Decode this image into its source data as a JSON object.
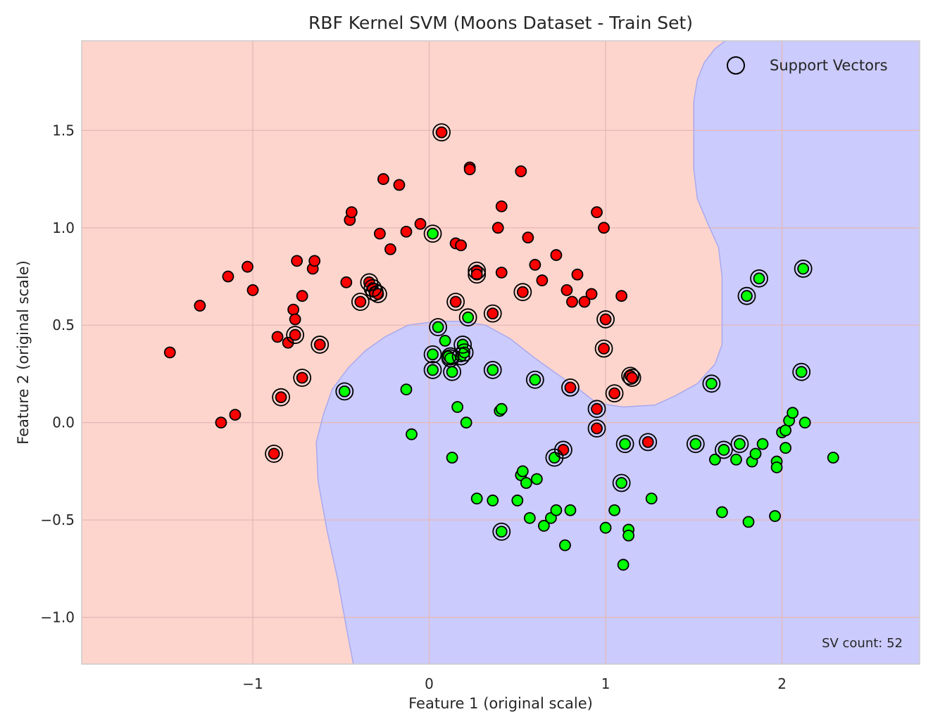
{
  "chart_data": {
    "type": "scatter",
    "title": "RBF Kernel SVM (Moons Dataset - Train Set)",
    "xlabel": "Feature 1 (original scale)",
    "ylabel": "Feature 2 (original scale)",
    "xlim": [
      -1.97,
      2.78
    ],
    "ylim": [
      -1.24,
      1.96
    ],
    "xticks": [
      -1,
      0,
      1,
      2
    ],
    "yticks": [
      -1.0,
      -0.5,
      0.0,
      0.5,
      1.0,
      1.5
    ],
    "xtick_labels": [
      "−1",
      "0",
      "1",
      "2"
    ],
    "ytick_labels": [
      "−1.0",
      "−0.5",
      "0.0",
      "0.5",
      "1.0",
      "1.5"
    ],
    "grid": true,
    "legend_position": "top-right",
    "legend": [
      {
        "label": "Support Vectors",
        "marker": "open-circle"
      }
    ],
    "annotation": "SV count: 52",
    "colors": {
      "class0_region": "#fdd5cd",
      "class1_region": "#cbcbfd",
      "class0_point": "#ff0000",
      "class1_point": "#00ff00",
      "point_edge": "#000000",
      "grid": "#e6b8b8"
    },
    "decision_boundary": [
      [
        1.68,
        1.96
      ],
      [
        1.62,
        1.92
      ],
      [
        1.56,
        1.85
      ],
      [
        1.52,
        1.76
      ],
      [
        1.5,
        1.65
      ],
      [
        1.5,
        1.5
      ],
      [
        1.5,
        1.3
      ],
      [
        1.52,
        1.15
      ],
      [
        1.58,
        1.02
      ],
      [
        1.64,
        0.9
      ],
      [
        1.66,
        0.75
      ],
      [
        1.66,
        0.55
      ],
      [
        1.66,
        0.4
      ],
      [
        1.62,
        0.3
      ],
      [
        1.52,
        0.2
      ],
      [
        1.4,
        0.14
      ],
      [
        1.28,
        0.09
      ],
      [
        1.1,
        0.08
      ],
      [
        0.95,
        0.1
      ],
      [
        0.85,
        0.17
      ],
      [
        0.74,
        0.24
      ],
      [
        0.6,
        0.33
      ],
      [
        0.46,
        0.43
      ],
      [
        0.32,
        0.5
      ],
      [
        0.18,
        0.52
      ],
      [
        0.04,
        0.52
      ],
      [
        -0.12,
        0.5
      ],
      [
        -0.25,
        0.44
      ],
      [
        -0.36,
        0.37
      ],
      [
        -0.46,
        0.28
      ],
      [
        -0.55,
        0.17
      ],
      [
        -0.6,
        0.04
      ],
      [
        -0.64,
        -0.1
      ],
      [
        -0.63,
        -0.3
      ],
      [
        -0.58,
        -0.55
      ],
      [
        -0.52,
        -0.8
      ],
      [
        -0.47,
        -1.05
      ],
      [
        -0.43,
        -1.24
      ]
    ],
    "series": [
      {
        "name": "class 0",
        "points": [
          [
            -1.47,
            0.36
          ],
          [
            -1.3,
            0.6
          ],
          [
            -1.14,
            0.75
          ],
          [
            -1.18,
            0.0
          ],
          [
            -1.1,
            0.04
          ],
          [
            -1.03,
            0.8
          ],
          [
            -1.0,
            0.68
          ],
          [
            -0.88,
            -0.16
          ],
          [
            -0.86,
            0.44
          ],
          [
            -0.84,
            0.13
          ],
          [
            -0.8,
            0.41
          ],
          [
            -0.77,
            0.58
          ],
          [
            -0.76,
            0.53
          ],
          [
            -0.76,
            0.45
          ],
          [
            -0.75,
            0.83
          ],
          [
            -0.72,
            0.65
          ],
          [
            -0.72,
            0.23
          ],
          [
            -0.66,
            0.79
          ],
          [
            -0.65,
            0.83
          ],
          [
            -0.62,
            0.4
          ],
          [
            -0.47,
            0.72
          ],
          [
            -0.45,
            1.04
          ],
          [
            -0.44,
            1.08
          ],
          [
            -0.39,
            0.62
          ],
          [
            -0.34,
            0.72
          ],
          [
            -0.32,
            0.69
          ],
          [
            -0.31,
            0.67
          ],
          [
            -0.29,
            0.66
          ],
          [
            -0.28,
            0.97
          ],
          [
            -0.26,
            1.25
          ],
          [
            -0.22,
            0.89
          ],
          [
            -0.17,
            1.22
          ],
          [
            -0.13,
            0.98
          ],
          [
            -0.05,
            1.02
          ],
          [
            0.07,
            1.49
          ],
          [
            0.15,
            0.92
          ],
          [
            0.15,
            0.62
          ],
          [
            0.18,
            0.91
          ],
          [
            0.23,
            1.31
          ],
          [
            0.23,
            1.3
          ],
          [
            0.27,
            0.78
          ],
          [
            0.27,
            0.76
          ],
          [
            0.36,
            0.56
          ],
          [
            0.39,
            1.0
          ],
          [
            0.41,
            1.11
          ],
          [
            0.41,
            0.77
          ],
          [
            0.52,
            1.29
          ],
          [
            0.53,
            0.67
          ],
          [
            0.56,
            0.95
          ],
          [
            0.6,
            0.81
          ],
          [
            0.64,
            0.73
          ],
          [
            0.72,
            0.86
          ],
          [
            0.78,
            0.68
          ],
          [
            0.81,
            0.62
          ],
          [
            0.8,
            0.18
          ],
          [
            0.84,
            0.76
          ],
          [
            0.88,
            0.62
          ],
          [
            0.92,
            0.66
          ],
          [
            0.95,
            1.08
          ],
          [
            0.95,
            0.07
          ],
          [
            0.95,
            -0.03
          ],
          [
            0.99,
            1.0
          ],
          [
            0.99,
            0.38
          ],
          [
            1.0,
            0.53
          ],
          [
            1.05,
            0.15
          ],
          [
            1.09,
            0.65
          ],
          [
            1.14,
            0.24
          ],
          [
            1.15,
            0.23
          ],
          [
            1.24,
            -0.1
          ],
          [
            0.76,
            -0.14
          ]
        ]
      },
      {
        "name": "class 1",
        "points": [
          [
            -0.48,
            0.16
          ],
          [
            -0.13,
            0.17
          ],
          [
            -0.1,
            -0.06
          ],
          [
            0.02,
            0.97
          ],
          [
            0.02,
            0.35
          ],
          [
            0.02,
            0.27
          ],
          [
            0.05,
            0.49
          ],
          [
            0.09,
            0.42
          ],
          [
            0.11,
            0.34
          ],
          [
            0.12,
            0.33
          ],
          [
            0.13,
            0.26
          ],
          [
            0.13,
            -0.18
          ],
          [
            0.16,
            0.08
          ],
          [
            0.18,
            0.34
          ],
          [
            0.19,
            0.4
          ],
          [
            0.2,
            0.36
          ],
          [
            0.21,
            0.0
          ],
          [
            0.22,
            0.54
          ],
          [
            0.27,
            -0.39
          ],
          [
            0.36,
            -0.4
          ],
          [
            0.36,
            0.27
          ],
          [
            0.4,
            0.06
          ],
          [
            0.41,
            0.07
          ],
          [
            0.41,
            -0.56
          ],
          [
            0.5,
            -0.4
          ],
          [
            0.52,
            -0.27
          ],
          [
            0.53,
            -0.25
          ],
          [
            0.55,
            -0.31
          ],
          [
            0.57,
            -0.49
          ],
          [
            0.6,
            0.22
          ],
          [
            0.61,
            -0.29
          ],
          [
            0.65,
            -0.53
          ],
          [
            0.69,
            -0.49
          ],
          [
            0.71,
            -0.18
          ],
          [
            0.72,
            -0.45
          ],
          [
            0.77,
            -0.63
          ],
          [
            0.8,
            -0.45
          ],
          [
            1.0,
            -0.54
          ],
          [
            1.05,
            -0.45
          ],
          [
            1.09,
            -0.31
          ],
          [
            1.1,
            -0.73
          ],
          [
            1.11,
            -0.11
          ],
          [
            1.13,
            -0.55
          ],
          [
            1.13,
            -0.58
          ],
          [
            1.26,
            -0.39
          ],
          [
            1.51,
            -0.11
          ],
          [
            1.6,
            0.2
          ],
          [
            1.62,
            -0.19
          ],
          [
            1.66,
            -0.46
          ],
          [
            1.67,
            -0.14
          ],
          [
            1.74,
            -0.19
          ],
          [
            1.76,
            -0.11
          ],
          [
            1.8,
            0.65
          ],
          [
            1.81,
            -0.51
          ],
          [
            1.83,
            -0.2
          ],
          [
            1.85,
            -0.16
          ],
          [
            1.87,
            0.74
          ],
          [
            1.89,
            -0.11
          ],
          [
            1.96,
            -0.48
          ],
          [
            1.97,
            -0.2
          ],
          [
            1.97,
            -0.23
          ],
          [
            2.0,
            -0.05
          ],
          [
            2.02,
            -0.13
          ],
          [
            2.02,
            -0.04
          ],
          [
            2.04,
            0.01
          ],
          [
            2.06,
            0.05
          ],
          [
            2.11,
            0.26
          ],
          [
            2.12,
            0.79
          ],
          [
            2.13,
            0.0
          ],
          [
            2.29,
            -0.18
          ]
        ]
      }
    ],
    "support_vectors": [
      [
        -0.88,
        -0.16
      ],
      [
        -0.84,
        0.13
      ],
      [
        -0.76,
        0.45
      ],
      [
        -0.72,
        0.23
      ],
      [
        -0.62,
        0.4
      ],
      [
        -0.48,
        0.16
      ],
      [
        -0.39,
        0.62
      ],
      [
        -0.34,
        0.72
      ],
      [
        -0.32,
        0.69
      ],
      [
        -0.29,
        0.66
      ],
      [
        0.02,
        0.97
      ],
      [
        0.02,
        0.35
      ],
      [
        0.02,
        0.27
      ],
      [
        0.05,
        0.49
      ],
      [
        0.07,
        1.49
      ],
      [
        0.12,
        0.33
      ],
      [
        0.13,
        0.26
      ],
      [
        0.15,
        0.62
      ],
      [
        0.18,
        0.34
      ],
      [
        0.19,
        0.4
      ],
      [
        0.22,
        0.54
      ],
      [
        0.27,
        0.78
      ],
      [
        0.27,
        0.76
      ],
      [
        0.36,
        0.56
      ],
      [
        0.36,
        0.27
      ],
      [
        0.41,
        -0.56
      ],
      [
        0.53,
        0.67
      ],
      [
        0.6,
        0.22
      ],
      [
        0.71,
        -0.18
      ],
      [
        0.76,
        -0.14
      ],
      [
        0.8,
        0.18
      ],
      [
        0.95,
        0.07
      ],
      [
        0.95,
        -0.03
      ],
      [
        0.99,
        0.38
      ],
      [
        1.0,
        0.53
      ],
      [
        1.05,
        0.15
      ],
      [
        1.09,
        -0.31
      ],
      [
        1.11,
        -0.11
      ],
      [
        1.14,
        0.24
      ],
      [
        1.15,
        0.23
      ],
      [
        1.24,
        -0.1
      ],
      [
        1.51,
        -0.11
      ],
      [
        1.6,
        0.2
      ],
      [
        1.67,
        -0.14
      ],
      [
        1.76,
        -0.11
      ],
      [
        1.8,
        0.65
      ],
      [
        1.87,
        0.74
      ],
      [
        2.11,
        0.26
      ],
      [
        2.12,
        0.79
      ],
      [
        -0.31,
        0.67
      ],
      [
        0.12,
        0.34
      ],
      [
        0.2,
        0.36
      ]
    ]
  }
}
